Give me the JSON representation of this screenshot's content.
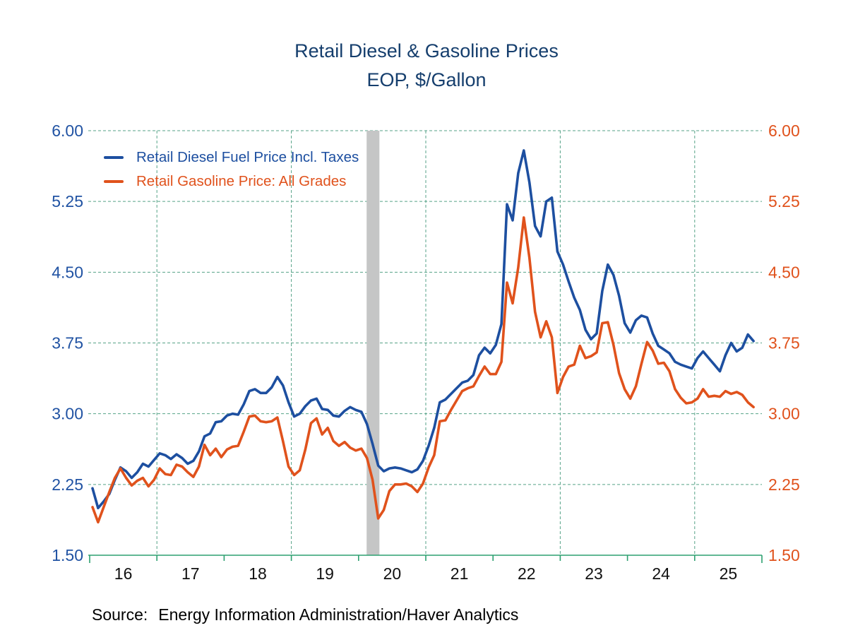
{
  "title": {
    "line1": "Retail Diesel & Gasoline Prices",
    "line2": "EOP, $/Gallon"
  },
  "source": {
    "label": "Source:",
    "text": "Energy Information Administration/Haver Analytics"
  },
  "colors": {
    "diesel": "#1d4fa0",
    "gasoline": "#e0521c",
    "title_text": "#153e6d",
    "left_axis_text": "#2153a3",
    "right_axis_text": "#e0521c",
    "x_axis_text": "#111111",
    "grid": "#56a287",
    "axis": "#2da070",
    "recession_band": "#c5c6c6"
  },
  "chart_data": {
    "type": "line",
    "title": "Retail Diesel & Gasoline Prices",
    "subtitle": "EOP, $/Gallon",
    "x_range": [
      2016,
      2026
    ],
    "y_range": [
      1.5,
      6.0
    ],
    "y_ticks": [
      6.0,
      5.25,
      4.5,
      3.75,
      3.0,
      2.25,
      1.5
    ],
    "x_tick_labels": [
      "16",
      "17",
      "18",
      "19",
      "20",
      "21",
      "22",
      "23",
      "24",
      "25"
    ],
    "grid_vertical_years": [
      2017,
      2019,
      2021,
      2023,
      2025
    ],
    "recession_band": {
      "start": 2020.12,
      "end": 2020.31
    },
    "start_year": 2016,
    "start_month": 1,
    "frequency": "monthly",
    "legend_position": "top-left",
    "grid": "dashed",
    "series": [
      {
        "name": "Retail Diesel Fuel Price Incl. Taxes",
        "color_key": "diesel",
        "values": [
          2.21,
          2.0,
          2.07,
          2.15,
          2.3,
          2.43,
          2.39,
          2.32,
          2.38,
          2.47,
          2.44,
          2.51,
          2.58,
          2.56,
          2.52,
          2.57,
          2.53,
          2.47,
          2.5,
          2.6,
          2.76,
          2.79,
          2.91,
          2.92,
          2.98,
          3.0,
          2.99,
          3.1,
          3.24,
          3.26,
          3.22,
          3.22,
          3.28,
          3.39,
          3.3,
          3.12,
          2.97,
          3.0,
          3.08,
          3.14,
          3.16,
          3.05,
          3.04,
          2.98,
          2.97,
          3.03,
          3.07,
          3.04,
          3.02,
          2.89,
          2.68,
          2.45,
          2.39,
          2.42,
          2.43,
          2.42,
          2.4,
          2.38,
          2.41,
          2.5,
          2.66,
          2.85,
          3.12,
          3.15,
          3.21,
          3.27,
          3.33,
          3.35,
          3.41,
          3.62,
          3.7,
          3.64,
          3.73,
          3.95,
          5.22,
          5.05,
          5.55,
          5.79,
          5.45,
          4.99,
          4.88,
          5.25,
          5.29,
          4.72,
          4.58,
          4.4,
          4.23,
          4.1,
          3.89,
          3.79,
          3.85,
          4.3,
          4.58,
          4.47,
          4.25,
          3.96,
          3.86,
          3.99,
          4.04,
          4.02,
          3.85,
          3.72,
          3.68,
          3.64,
          3.55,
          3.52,
          3.5,
          3.48,
          3.59,
          3.66,
          3.59,
          3.52,
          3.45,
          3.62,
          3.75,
          3.66,
          3.7,
          3.84,
          3.77
        ]
      },
      {
        "name": "Retail Gasoline Price: All Grades",
        "color_key": "gasoline",
        "values": [
          2.01,
          1.85,
          2.01,
          2.17,
          2.32,
          2.42,
          2.32,
          2.24,
          2.29,
          2.32,
          2.23,
          2.3,
          2.42,
          2.36,
          2.35,
          2.46,
          2.44,
          2.38,
          2.33,
          2.44,
          2.67,
          2.56,
          2.63,
          2.54,
          2.62,
          2.65,
          2.66,
          2.81,
          2.97,
          2.98,
          2.92,
          2.91,
          2.92,
          2.96,
          2.71,
          2.44,
          2.35,
          2.4,
          2.62,
          2.9,
          2.95,
          2.78,
          2.85,
          2.71,
          2.66,
          2.7,
          2.64,
          2.61,
          2.63,
          2.53,
          2.3,
          1.89,
          1.98,
          2.18,
          2.25,
          2.25,
          2.26,
          2.23,
          2.17,
          2.26,
          2.43,
          2.56,
          2.92,
          2.93,
          3.04,
          3.14,
          3.24,
          3.27,
          3.29,
          3.4,
          3.5,
          3.42,
          3.42,
          3.55,
          4.39,
          4.17,
          4.55,
          5.08,
          4.65,
          4.08,
          3.81,
          3.98,
          3.81,
          3.22,
          3.39,
          3.5,
          3.52,
          3.72,
          3.59,
          3.61,
          3.65,
          3.96,
          3.97,
          3.73,
          3.43,
          3.26,
          3.16,
          3.29,
          3.53,
          3.76,
          3.67,
          3.53,
          3.54,
          3.45,
          3.26,
          3.17,
          3.11,
          3.12,
          3.16,
          3.26,
          3.18,
          3.19,
          3.18,
          3.24,
          3.21,
          3.23,
          3.2,
          3.12,
          3.07
        ]
      }
    ]
  }
}
